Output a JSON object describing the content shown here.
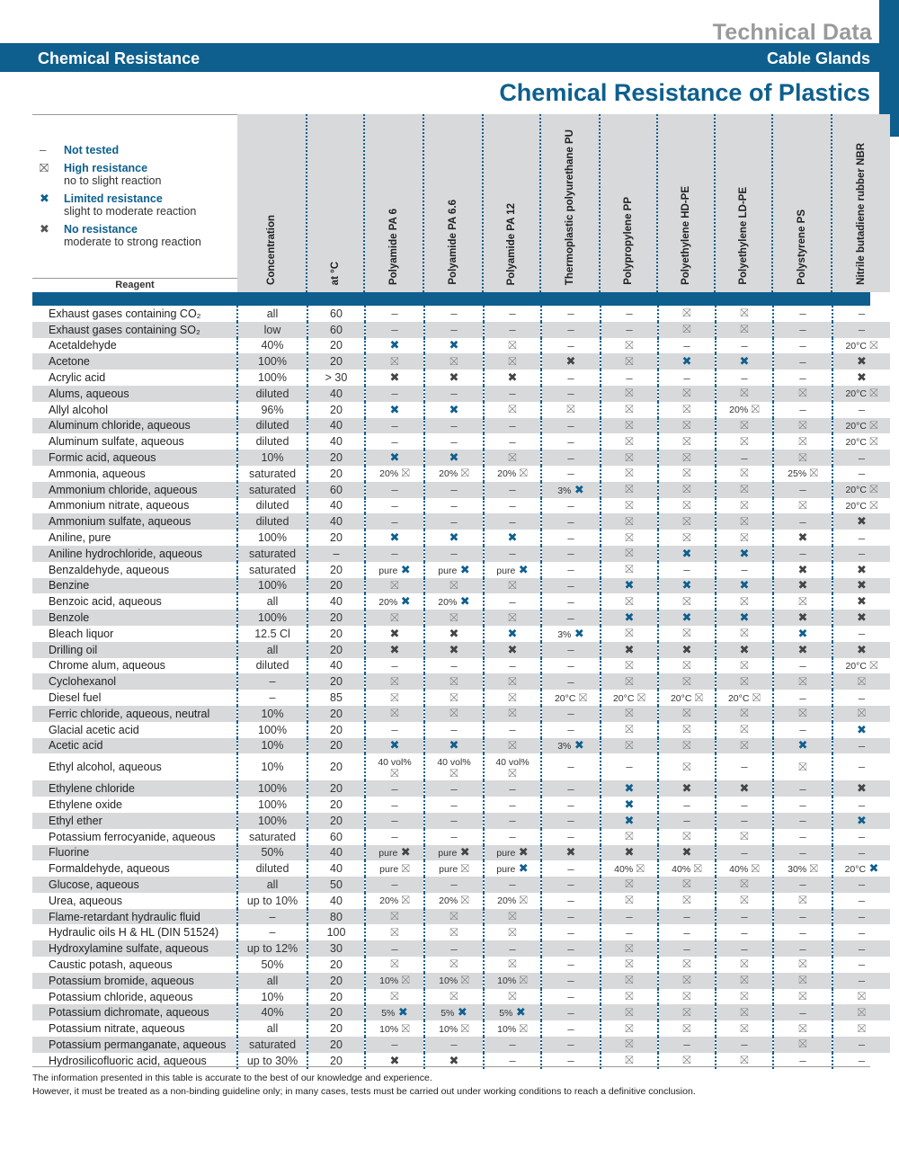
{
  "header": {
    "tech_title": "Technical Data",
    "left": "Chemical Resistance",
    "right": "Cable Glands"
  },
  "title": "Chemical Resistance of Plastics",
  "legend": [
    {
      "symbol": "–",
      "kind": "dash",
      "title": "Not tested",
      "sub": ""
    },
    {
      "symbol": "⛝",
      "kind": "hi",
      "title": "High resistance",
      "sub": "no to slight reaction"
    },
    {
      "symbol": "✖",
      "kind": "li",
      "title": "Limited resistance",
      "sub": "slight to moderate reaction"
    },
    {
      "symbol": "✖",
      "kind": "no",
      "title": "No resistance",
      "sub": "moderate to strong reaction"
    }
  ],
  "reagent_header": "Reagent",
  "columns": [
    "Concentration",
    "at °C",
    "Polyamide PA 6",
    "Polyamide PA 6.6",
    "Polyamide PA 12",
    "Thermoplastic polyurethane PU",
    "Polypropylene PP",
    "Polyethylene HD-PE",
    "Polyethylene LD-PE",
    "Polystyrene PS",
    "Nitrile butadiene rubber NBR"
  ],
  "rows": [
    {
      "r": "Exhaust gases containing CO₂",
      "c": "all",
      "t": "60",
      "v": [
        "-",
        "-",
        "-",
        "-",
        "-",
        "H",
        "H",
        "-",
        "-"
      ]
    },
    {
      "r": "Exhaust gases containing SO₂",
      "c": "low",
      "t": "60",
      "v": [
        "-",
        "-",
        "-",
        "-",
        "-",
        "H",
        "H",
        "-",
        "-"
      ]
    },
    {
      "r": "Acetaldehyde",
      "c": "40%",
      "t": "20",
      "v": [
        "L",
        "L",
        "H",
        "-",
        "H",
        "-",
        "-",
        "-",
        "20°C|H"
      ]
    },
    {
      "r": "Acetone",
      "c": "100%",
      "t": "20",
      "v": [
        "H",
        "H",
        "H",
        "N",
        "H",
        "L",
        "L",
        "-",
        "N"
      ]
    },
    {
      "r": "Acrylic acid",
      "c": "100%",
      "t": "> 30",
      "v": [
        "N",
        "N",
        "N",
        "-",
        "-",
        "-",
        "-",
        "-",
        "N"
      ]
    },
    {
      "r": "Alums, aqueous",
      "c": "diluted",
      "t": "40",
      "v": [
        "-",
        "-",
        "-",
        "-",
        "H",
        "H",
        "H",
        "H",
        "20°C|H"
      ]
    },
    {
      "r": "Allyl alcohol",
      "c": "96%",
      "t": "20",
      "v": [
        "L",
        "L",
        "H",
        "H",
        "H",
        "H",
        "20%|H",
        "-",
        "-"
      ]
    },
    {
      "r": "Aluminum chloride, aqueous",
      "c": "diluted",
      "t": "40",
      "v": [
        "-",
        "-",
        "-",
        "-",
        "H",
        "H",
        "H",
        "H",
        "20°C|H"
      ]
    },
    {
      "r": "Aluminum sulfate, aqueous",
      "c": "diluted",
      "t": "40",
      "v": [
        "-",
        "-",
        "-",
        "-",
        "H",
        "H",
        "H",
        "H",
        "20°C|H"
      ]
    },
    {
      "r": "Formic acid, aqueous",
      "c": "10%",
      "t": "20",
      "v": [
        "L",
        "L",
        "H",
        "-",
        "H",
        "H",
        "-",
        "H",
        "-"
      ]
    },
    {
      "r": "Ammonia, aqueous",
      "c": "saturated",
      "t": "20",
      "v": [
        "20%|H",
        "20%|H",
        "20%|H",
        "-",
        "H",
        "H",
        "H",
        "25%|H",
        "-"
      ]
    },
    {
      "r": "Ammonium chloride, aqueous",
      "c": "saturated",
      "t": "60",
      "v": [
        "-",
        "-",
        "-",
        "3%|L",
        "H",
        "H",
        "H",
        "-",
        "20°C|H"
      ]
    },
    {
      "r": "Ammonium nitrate, aqueous",
      "c": "diluted",
      "t": "40",
      "v": [
        "-",
        "-",
        "-",
        "-",
        "H",
        "H",
        "H",
        "H",
        "20°C|H"
      ]
    },
    {
      "r": "Ammonium sulfate, aqueous",
      "c": "diluted",
      "t": "40",
      "v": [
        "-",
        "-",
        "-",
        "-",
        "H",
        "H",
        "H",
        "-",
        "N"
      ]
    },
    {
      "r": "Aniline, pure",
      "c": "100%",
      "t": "20",
      "v": [
        "L",
        "L",
        "L",
        "-",
        "H",
        "H",
        "H",
        "N",
        "-"
      ]
    },
    {
      "r": "Aniline hydrochloride, aqueous",
      "c": "saturated",
      "t": "–",
      "v": [
        "-",
        "-",
        "-",
        "-",
        "H",
        "L",
        "L",
        "-",
        "-"
      ]
    },
    {
      "r": "Benzaldehyde, aqueous",
      "c": "saturated",
      "t": "20",
      "v": [
        "pure|L",
        "pure|L",
        "pure|L",
        "-",
        "H",
        "-",
        "-",
        "N",
        "N"
      ]
    },
    {
      "r": "Benzine",
      "c": "100%",
      "t": "20",
      "v": [
        "H",
        "H",
        "H",
        "-",
        "L",
        "L",
        "L",
        "N",
        "N"
      ]
    },
    {
      "r": "Benzoic acid, aqueous",
      "c": "all",
      "t": "40",
      "v": [
        "20%|L",
        "20%|L",
        "-",
        "-",
        "H",
        "H",
        "H",
        "H",
        "N"
      ]
    },
    {
      "r": "Benzole",
      "c": "100%",
      "t": "20",
      "v": [
        "H",
        "H",
        "H",
        "-",
        "L",
        "L",
        "L",
        "N",
        "N"
      ]
    },
    {
      "r": "Bleach liquor",
      "c": "12.5 Cl",
      "t": "20",
      "v": [
        "N",
        "N",
        "L",
        "3%|L",
        "H",
        "H",
        "H",
        "L",
        "-"
      ]
    },
    {
      "r": "Drilling oil",
      "c": "all",
      "t": "20",
      "v": [
        "N",
        "N",
        "N",
        "-",
        "N",
        "N",
        "N",
        "N",
        "N"
      ]
    },
    {
      "r": "Chrome alum, aqueous",
      "c": "diluted",
      "t": "40",
      "v": [
        "-",
        "-",
        "-",
        "-",
        "H",
        "H",
        "H",
        "-",
        "20°C|H"
      ]
    },
    {
      "r": "Cyclohexanol",
      "c": "–",
      "t": "20",
      "v": [
        "H",
        "H",
        "H",
        "-",
        "H",
        "H",
        "H",
        "H",
        "H"
      ]
    },
    {
      "r": "Diesel fuel",
      "c": "–",
      "t": "85",
      "v": [
        "H",
        "H",
        "H",
        "20°C|H",
        "20°C|H",
        "20°C|H",
        "20°C|H",
        "-",
        "-"
      ]
    },
    {
      "r": "Ferric chloride, aqueous, neutral",
      "c": "10%",
      "t": "20",
      "v": [
        "H",
        "H",
        "H",
        "-",
        "H",
        "H",
        "H",
        "H",
        "H"
      ]
    },
    {
      "r": "Glacial acetic acid",
      "c": "100%",
      "t": "20",
      "v": [
        "-",
        "-",
        "-",
        "-",
        "H",
        "H",
        "H",
        "-",
        "L"
      ]
    },
    {
      "r": "Acetic acid",
      "c": "10%",
      "t": "20",
      "v": [
        "L",
        "L",
        "H",
        "3%|L",
        "H",
        "H",
        "H",
        "L",
        "-"
      ]
    },
    {
      "r": "Ethyl alcohol, aqueous",
      "c": "10%",
      "t": "20",
      "tall": true,
      "v": [
        "40 vol%|H",
        "40 vol%|H",
        "40 vol%|H",
        "-",
        "-",
        "H",
        "-",
        "H",
        "-"
      ]
    },
    {
      "r": "Ethylene chloride",
      "c": "100%",
      "t": "20",
      "v": [
        "-",
        "-",
        "-",
        "-",
        "L",
        "N",
        "N",
        "-",
        "N"
      ]
    },
    {
      "r": "Ethylene oxide",
      "c": "100%",
      "t": "20",
      "v": [
        "-",
        "-",
        "-",
        "-",
        "L",
        "-",
        "-",
        "-",
        "-"
      ]
    },
    {
      "r": "Ethyl ether",
      "c": "100%",
      "t": "20",
      "v": [
        "-",
        "-",
        "-",
        "-",
        "L",
        "-",
        "-",
        "-",
        "L"
      ]
    },
    {
      "r": "Potassium ferrocyanide, aqueous",
      "c": "saturated",
      "t": "60",
      "v": [
        "-",
        "-",
        "-",
        "-",
        "H",
        "H",
        "H",
        "-",
        "-"
      ]
    },
    {
      "r": "Fluorine",
      "c": "50%",
      "t": "40",
      "v": [
        "pure|N",
        "pure|N",
        "pure|N",
        "N",
        "N",
        "N",
        "-",
        "-",
        "-"
      ]
    },
    {
      "r": "Formaldehyde, aqueous",
      "c": "diluted",
      "t": "40",
      "v": [
        "pure|H",
        "pure|H",
        "pure|L",
        "-",
        "40%|H",
        "40%|H",
        "40%|H",
        "30%|H",
        "20°C|L"
      ]
    },
    {
      "r": "Glucose, aqueous",
      "c": "all",
      "t": "50",
      "v": [
        "-",
        "-",
        "-",
        "-",
        "H",
        "H",
        "H",
        "-",
        "-"
      ]
    },
    {
      "r": "Urea, aqueous",
      "c": "up to 10%",
      "t": "40",
      "v": [
        "20%|H",
        "20%|H",
        "20%|H",
        "-",
        "H",
        "H",
        "H",
        "H",
        "-"
      ]
    },
    {
      "r": "Flame-retardant hydraulic fluid",
      "c": "–",
      "t": "80",
      "v": [
        "H",
        "H",
        "H",
        "-",
        "-",
        "-",
        "-",
        "-",
        "-"
      ]
    },
    {
      "r": "Hydraulic oils H & HL (DIN 51524)",
      "c": "–",
      "t": "100",
      "v": [
        "H",
        "H",
        "H",
        "-",
        "-",
        "-",
        "-",
        "-",
        "-"
      ]
    },
    {
      "r": "Hydroxylamine sulfate, aqueous",
      "c": "up to 12%",
      "t": "30",
      "v": [
        "-",
        "-",
        "-",
        "-",
        "H",
        "-",
        "-",
        "-",
        "-"
      ]
    },
    {
      "r": "Caustic potash, aqueous",
      "c": "50%",
      "t": "20",
      "v": [
        "H",
        "H",
        "H",
        "-",
        "H",
        "H",
        "H",
        "H",
        "-"
      ]
    },
    {
      "r": "Potassium bromide, aqueous",
      "c": "all",
      "t": "20",
      "v": [
        "10%|H",
        "10%|H",
        "10%|H",
        "-",
        "H",
        "H",
        "H",
        "H",
        "-"
      ]
    },
    {
      "r": "Potassium chloride, aqueous",
      "c": "10%",
      "t": "20",
      "v": [
        "H",
        "H",
        "H",
        "-",
        "H",
        "H",
        "H",
        "H",
        "H"
      ]
    },
    {
      "r": "Potassium dichromate, aqueous",
      "c": "40%",
      "t": "20",
      "v": [
        "5%|L",
        "5%|L",
        "5%|L",
        "-",
        "H",
        "H",
        "H",
        "-",
        "H"
      ]
    },
    {
      "r": "Potassium nitrate, aqueous",
      "c": "all",
      "t": "20",
      "v": [
        "10%|H",
        "10%|H",
        "10%|H",
        "-",
        "H",
        "H",
        "H",
        "H",
        "H"
      ]
    },
    {
      "r": "Potassium permanganate, aqueous",
      "c": "saturated",
      "t": "20",
      "v": [
        "-",
        "-",
        "-",
        "-",
        "H",
        "-",
        "-",
        "H",
        "-"
      ]
    },
    {
      "r": "Hydrosilicofluoric acid, aqueous",
      "c": "up to 30%",
      "t": "20",
      "v": [
        "N",
        "N",
        "-",
        "-",
        "H",
        "H",
        "H",
        "-",
        "-"
      ]
    }
  ],
  "symbols": {
    "-": "–",
    "H": "⛝",
    "L": "✖",
    "N": "✖"
  },
  "footnote": [
    "The information presented in this table is accurate to the best of our knowledge and experience.",
    "However, it must be treated as a non-binding guideline only; in many cases, tests must be carried out under working conditions to reach a definitive conclusion."
  ]
}
